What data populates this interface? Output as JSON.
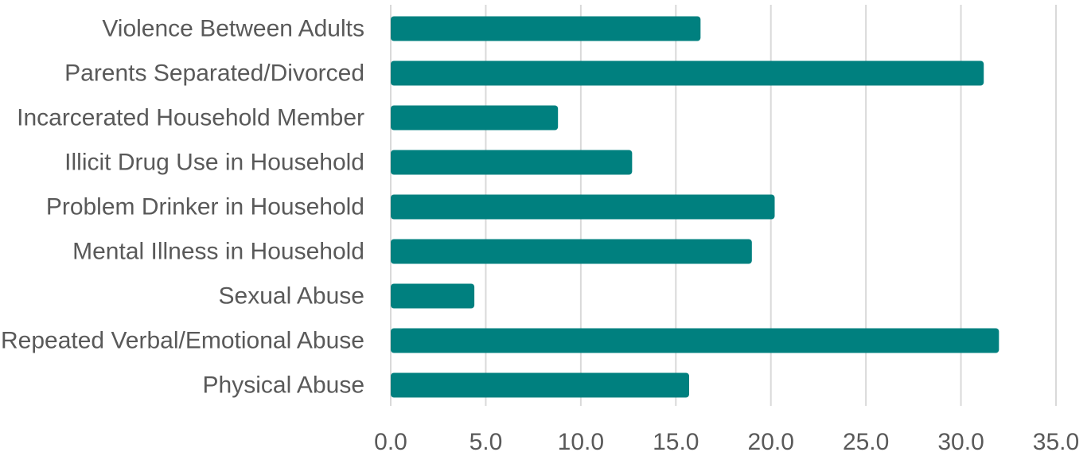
{
  "chart_data": {
    "type": "bar",
    "orientation": "horizontal",
    "title": "",
    "xlabel": "",
    "ylabel": "",
    "categories": [
      "Violence Between Adults",
      "Parents Separated/Divorced",
      "Incarcerated Household Member",
      "Illicit Drug Use in Household",
      "Problem Drinker in Household",
      "Mental Illness in Household",
      "Sexual Abuse",
      "Repeated Verbal/Emotional Abuse",
      "Physical Abuse"
    ],
    "values": [
      16.3,
      31.2,
      8.8,
      12.7,
      20.2,
      19.0,
      4.4,
      32.0,
      15.7
    ],
    "xlim": [
      0,
      35
    ],
    "ticks": [
      "0.0",
      "5.0",
      "10.0",
      "15.0",
      "20.0",
      "25.0",
      "30.0",
      "35.0"
    ],
    "grid": "vertical",
    "legend": "none",
    "bar_color": "#00807f",
    "grid_color": "#d9d9d9",
    "text_color": "#595959"
  }
}
